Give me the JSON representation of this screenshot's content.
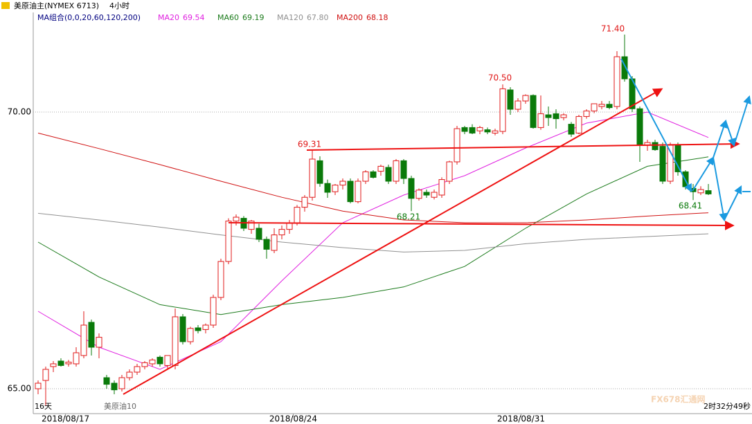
{
  "chart_data": {
    "type": "candlestick",
    "title": "美原油主(NYMEX 6713)",
    "period": "4小时",
    "indicator": "MA组合(0,0,20,60,120,200)",
    "up_color": "#e01818",
    "down_color": "#0a7a0a",
    "ylim": [
      64.55,
      72.025
    ],
    "yticks": [
      {
        "value": 65,
        "label": "65.00"
      },
      {
        "value": 70,
        "label": "70.00"
      }
    ],
    "grid": true,
    "xlim": [
      0,
      88
    ],
    "xticks": [
      {
        "value": 3.6,
        "label": "2018/08/17"
      },
      {
        "value": 33.5,
        "label": "2018/08/24"
      },
      {
        "value": 63.4,
        "label": "2018/08/31"
      }
    ],
    "open": [
      65.0,
      65.15,
      65.4,
      65.5,
      65.45,
      65.45,
      65.6,
      66.2,
      65.75,
      65.2,
      65.1,
      65.0,
      65.2,
      65.3,
      65.4,
      65.45,
      65.57,
      65.42,
      65.42,
      66.3,
      65.85,
      66.1,
      66.07,
      66.15,
      66.65,
      67.3,
      68.03,
      68.08,
      67.88,
      67.9,
      67.7,
      67.5,
      67.78,
      67.88,
      68.0,
      68.28,
      68.46,
      69.12,
      68.71,
      68.56,
      68.68,
      68.75,
      68.38,
      68.75,
      68.92,
      68.93,
      69.0,
      68.75,
      69.12,
      68.8,
      68.44,
      68.55,
      68.46,
      68.5,
      68.75,
      69.1,
      69.72,
      69.72,
      69.66,
      69.68,
      69.62,
      69.65,
      70.4,
      70.05,
      70.2,
      70.3,
      69.72,
      69.95,
      69.97,
      69.9,
      69.78,
      69.62,
      69.92,
      70.02,
      70.1,
      70.14,
      70.1,
      71.0,
      70.6,
      70.06,
      69.4,
      69.45,
      69.38,
      68.75,
      69.4,
      68.92,
      68.62,
      68.54,
      68.58
    ],
    "high": [
      65.15,
      65.4,
      65.5,
      65.55,
      65.52,
      65.75,
      66.4,
      66.25,
      66.0,
      65.25,
      65.15,
      65.25,
      65.35,
      65.45,
      65.5,
      65.55,
      65.6,
      65.6,
      66.45,
      66.35,
      66.12,
      66.15,
      66.18,
      66.7,
      67.35,
      68.08,
      68.15,
      68.12,
      68.05,
      67.98,
      67.75,
      67.9,
      67.95,
      68.05,
      68.32,
      68.5,
      69.31,
      69.2,
      68.78,
      68.7,
      68.8,
      68.8,
      68.8,
      68.95,
      68.95,
      69.05,
      69.05,
      69.15,
      69.15,
      68.85,
      68.62,
      68.6,
      68.6,
      68.82,
      69.12,
      69.75,
      69.75,
      69.78,
      69.75,
      69.72,
      69.7,
      70.5,
      70.45,
      70.25,
      70.32,
      70.32,
      70.3,
      70.1,
      70.05,
      69.98,
      69.82,
      69.95,
      70.05,
      70.15,
      70.2,
      70.2,
      71.1,
      71.4,
      70.65,
      70.1,
      69.5,
      69.5,
      69.45,
      69.45,
      69.45,
      68.95,
      68.7,
      68.66,
      68.7
    ],
    "low": [
      64.9,
      64.7,
      65.3,
      65.4,
      65.4,
      65.4,
      65.55,
      65.6,
      65.55,
      65.0,
      64.9,
      64.95,
      65.15,
      65.25,
      65.35,
      65.4,
      65.4,
      65.35,
      65.35,
      65.8,
      65.8,
      66.0,
      66.0,
      66.1,
      66.6,
      67.25,
      67.95,
      67.85,
      67.8,
      67.65,
      67.35,
      67.45,
      67.7,
      67.8,
      67.95,
      68.2,
      68.4,
      68.65,
      68.45,
      68.5,
      68.6,
      68.35,
      68.35,
      68.7,
      68.8,
      68.85,
      68.7,
      68.7,
      68.7,
      68.21,
      68.4,
      68.45,
      68.42,
      68.45,
      68.7,
      69.05,
      69.6,
      69.6,
      69.6,
      69.6,
      69.58,
      69.6,
      69.95,
      70.0,
      70.15,
      69.7,
      69.68,
      69.75,
      69.7,
      69.85,
      69.55,
      69.6,
      69.88,
      69.98,
      70.05,
      70.05,
      70.05,
      70.55,
      70.0,
      69.1,
      69.3,
      69.3,
      68.7,
      68.7,
      68.85,
      68.6,
      68.41,
      68.5,
      68.5
    ],
    "close": [
      65.1,
      65.35,
      65.45,
      65.42,
      65.48,
      65.65,
      66.15,
      65.75,
      65.93,
      65.08,
      64.98,
      65.2,
      65.3,
      65.4,
      65.47,
      65.52,
      65.45,
      65.6,
      66.3,
      65.85,
      66.09,
      66.05,
      66.15,
      66.65,
      67.3,
      68.03,
      68.1,
      67.9,
      68.03,
      67.7,
      67.52,
      67.78,
      67.88,
      68.0,
      68.28,
      68.46,
      69.15,
      68.71,
      68.55,
      68.68,
      68.75,
      68.38,
      68.75,
      68.92,
      68.82,
      69.02,
      68.75,
      69.12,
      68.8,
      68.44,
      68.59,
      68.5,
      68.55,
      68.78,
      69.1,
      69.7,
      69.65,
      69.62,
      69.72,
      69.64,
      69.66,
      70.42,
      70.05,
      70.2,
      70.3,
      69.72,
      69.97,
      69.9,
      69.88,
      69.95,
      69.6,
      69.92,
      70.02,
      70.15,
      70.14,
      70.08,
      71.0,
      70.6,
      70.06,
      69.4,
      69.45,
      69.32,
      68.75,
      69.4,
      68.92,
      68.65,
      68.56,
      68.6,
      68.52
    ],
    "series": [
      {
        "name": "MA20",
        "legend_label": "69.54",
        "color": "#e020e0",
        "x": [
          0,
          8,
          16,
          24,
          32,
          40,
          48,
          56,
          64,
          72,
          80,
          88
        ],
        "values": [
          66.4,
          65.75,
          65.35,
          65.85,
          66.95,
          68.0,
          68.5,
          68.85,
          69.35,
          69.8,
          70.0,
          69.54
        ]
      },
      {
        "name": "MA60",
        "legend_label": "69.19",
        "color": "#1a7a1a",
        "x": [
          0,
          8,
          16,
          24,
          32,
          40,
          48,
          56,
          64,
          72,
          80,
          88
        ],
        "values": [
          67.65,
          67.02,
          66.52,
          66.34,
          66.52,
          66.65,
          66.84,
          67.21,
          67.9,
          68.52,
          69.02,
          69.19
        ]
      },
      {
        "name": "MA120",
        "legend_label": "67.80",
        "color": "#909090",
        "x": [
          0,
          8,
          16,
          24,
          32,
          40,
          48,
          56,
          64,
          72,
          80,
          88
        ],
        "values": [
          68.17,
          68.05,
          67.92,
          67.78,
          67.65,
          67.55,
          67.47,
          67.5,
          67.62,
          67.7,
          67.75,
          67.8
        ]
      },
      {
        "name": "MA200",
        "legend_label": "68.18",
        "color": "#d01010",
        "x": [
          0,
          8,
          16,
          24,
          32,
          40,
          48,
          56,
          64,
          72,
          80,
          88
        ],
        "values": [
          69.62,
          69.34,
          69.05,
          68.75,
          68.46,
          68.21,
          68.05,
          68.0,
          68.0,
          68.05,
          68.12,
          68.18
        ]
      }
    ],
    "annotations": [
      "71.40",
      "70.50",
      "69.31",
      "68.21",
      "68.41"
    ],
    "footer_left": "16天",
    "footer_name": "美原油10",
    "countdown": "2时32分49秒",
    "watermark": "FX678汇通网"
  }
}
